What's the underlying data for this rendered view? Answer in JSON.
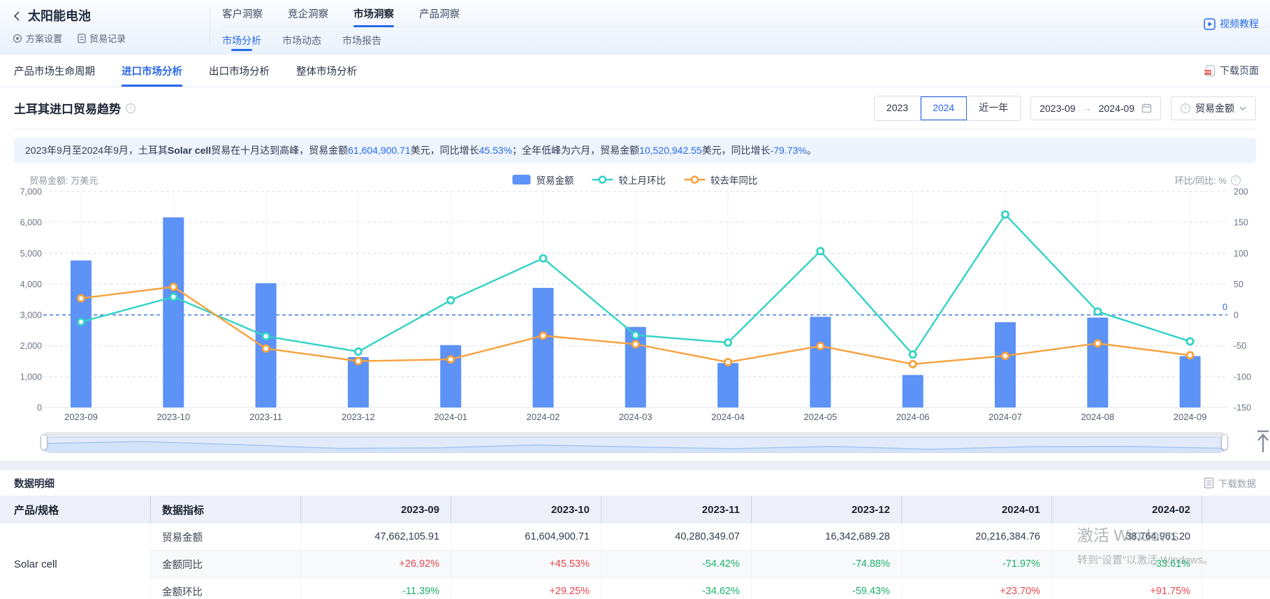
{
  "header": {
    "back_title": "太阳能电池",
    "scheme_settings": "方案设置",
    "trade_records": "贸易记录",
    "main_tabs": [
      {
        "label": "客户洞察",
        "active": false
      },
      {
        "label": "竞企洞察",
        "active": false
      },
      {
        "label": "市场洞察",
        "active": true
      },
      {
        "label": "产品洞察",
        "active": false
      }
    ],
    "sub_tabs": [
      {
        "label": "市场分析",
        "active": true
      },
      {
        "label": "市场动态",
        "active": false
      },
      {
        "label": "市场报告",
        "active": false
      }
    ],
    "video_tutorial": "视频教程"
  },
  "nav": {
    "tabs": [
      {
        "label": "产品市场生命周期",
        "active": false
      },
      {
        "label": "进口市场分析",
        "active": true
      },
      {
        "label": "出口市场分析",
        "active": false
      },
      {
        "label": "整体市场分析",
        "active": false
      }
    ],
    "download_page": "下载页面"
  },
  "chart_card": {
    "title": "土耳其进口贸易趋势",
    "year_buttons": [
      {
        "label": "2023",
        "active": false
      },
      {
        "label": "2024",
        "active": true
      },
      {
        "label": "近一年",
        "active": false
      }
    ],
    "date_from": "2023-09",
    "date_to": "2024-09",
    "metric": "贸易金额",
    "summary_segments": [
      {
        "t": "2023年9月至2024年9月，土耳其",
        "s": "plain"
      },
      {
        "t": "Solar cell",
        "s": "bold"
      },
      {
        "t": "贸易在十月达到高峰，贸易金额",
        "s": "plain"
      },
      {
        "t": "61,604,900.71",
        "s": "blue"
      },
      {
        "t": "美元，同比增长",
        "s": "plain"
      },
      {
        "t": "45.53%",
        "s": "blue"
      },
      {
        "t": "；全年低峰为六月，贸易金额",
        "s": "plain"
      },
      {
        "t": "10,520,942.55",
        "s": "blue"
      },
      {
        "t": "美元，同比增长",
        "s": "plain"
      },
      {
        "t": "-79.73%",
        "s": "blue"
      },
      {
        "t": "。",
        "s": "plain"
      }
    ],
    "left_caption": "贸易金额: 万美元",
    "right_caption": "环比/同比: %",
    "zero_label": "0"
  },
  "chart_data": {
    "type": "bar",
    "title": "土耳其进口贸易趋势",
    "categories": [
      "2023-09",
      "2023-10",
      "2023-11",
      "2023-12",
      "2024-01",
      "2024-02",
      "2024-03",
      "2024-04",
      "2024-05",
      "2024-06",
      "2024-07",
      "2024-08",
      "2024-09"
    ],
    "series": [
      {
        "name": "贸易金额",
        "type": "bar",
        "unit": "万美元",
        "color": "#5d92f6",
        "values": [
          4766.21,
          6160.49,
          4028.03,
          1634.27,
          2021.64,
          3876.5,
          2610,
          1440,
          2940,
          1052.09,
          2765,
          2915,
          1665
        ]
      },
      {
        "name": "较上月环比",
        "type": "line",
        "unit": "%",
        "color": "#32d3c5",
        "values": [
          -11.39,
          29.25,
          -34.62,
          -59.43,
          23.7,
          91.75,
          -32.7,
          -44.8,
          103.5,
          -64.2,
          162.8,
          5.4,
          -42.9
        ]
      },
      {
        "name": "较去年同比",
        "type": "line",
        "unit": "%",
        "color": "#f9a03c",
        "values": [
          26.92,
          45.53,
          -54.42,
          -74.88,
          -71.97,
          -33.61,
          -47.5,
          -76.5,
          -50.4,
          -79.73,
          -66.3,
          -46.2,
          -65.3
        ]
      }
    ],
    "left_axis": {
      "label": "贸易金额: 万美元",
      "min": 0,
      "max": 7000,
      "step": 1000
    },
    "right_axis": {
      "label": "环比/同比: %",
      "min": -150,
      "max": 200,
      "step": 50
    },
    "zero_markline_right_axis": 0,
    "grid": "dashed",
    "legend_position": "top-center"
  },
  "table_card": {
    "title": "数据明细",
    "download_data": "下载数据",
    "col1_header": "产品/规格",
    "col2_header": "数据指标",
    "months": [
      "2023-09",
      "2023-10",
      "2023-11",
      "2023-12",
      "2024-01",
      "2024-02"
    ],
    "product": "Solar cell",
    "rows": [
      {
        "label": "贸易金额",
        "colored": false,
        "values": [
          "47,662,105.91",
          "61,604,900.71",
          "40,280,349.07",
          "16,342,689.28",
          "20,216,384.76",
          "38,764,961.20"
        ]
      },
      {
        "label": "金额同比",
        "colored": true,
        "values": [
          "+26.92%",
          "+45.53%",
          "-54.42%",
          "-74.88%",
          "-71.97%",
          "-33.61%"
        ]
      },
      {
        "label": "金额环比",
        "colored": true,
        "values": [
          "-11.39%",
          "+29.25%",
          "-34.62%",
          "-59.43%",
          "+23.70%",
          "+91.75%"
        ]
      }
    ]
  },
  "watermark": {
    "line1": "激活 Windows",
    "line2": "转到“设置”以激活 Windows。"
  },
  "colors": {
    "accent": "#2768e8",
    "bar": "#5d92f6",
    "mom_line": "#32d3c5",
    "yoy_line": "#f9a03c",
    "up_red": "#e8484e",
    "down_green": "#1bb26b",
    "pdf_red": "#e24b43",
    "banner_bg": "#edf4fe",
    "table_header_bg": "#edf0f8"
  }
}
